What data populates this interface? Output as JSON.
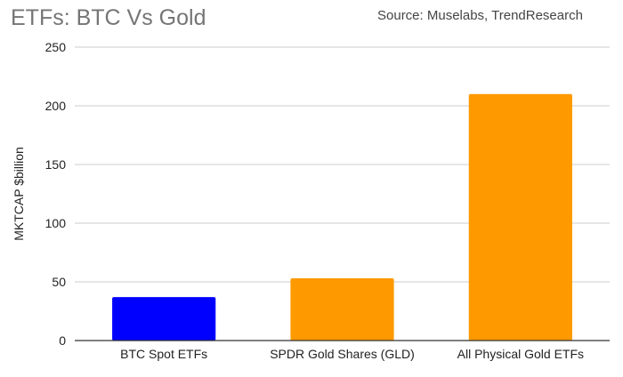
{
  "chart_data": {
    "type": "bar",
    "title": "ETFs: BTC Vs Gold",
    "subtitle": "Source: Muselabs, TrendResearch",
    "ylabel": "MKTCAP $billion",
    "xlabel": "",
    "ylim": [
      0,
      250
    ],
    "yticks": [
      0,
      50,
      100,
      150,
      200,
      250
    ],
    "grid": true,
    "legend": "none",
    "categories": [
      "BTC Spot ETFs",
      "SPDR Gold Shares (GLD)",
      "All Physical Gold ETFs"
    ],
    "values": [
      37,
      53,
      210
    ],
    "colors": [
      "#0000ff",
      "#ff9900",
      "#ff9900"
    ]
  }
}
